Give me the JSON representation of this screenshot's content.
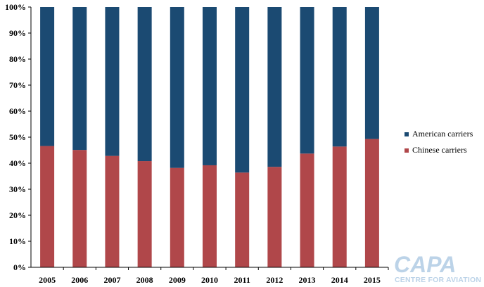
{
  "chart_data": {
    "type": "bar",
    "stacked": true,
    "percent_stacked": true,
    "categories": [
      "2005",
      "2006",
      "2007",
      "2008",
      "2009",
      "2010",
      "2011",
      "2012",
      "2013",
      "2014",
      "2015"
    ],
    "series": [
      {
        "name": "Chinese carriers",
        "color": "#b0474a",
        "values": [
          46.6,
          45.1,
          42.8,
          40.8,
          38.2,
          39.2,
          36.4,
          38.6,
          43.7,
          46.4,
          49.3
        ]
      },
      {
        "name": "American carriers",
        "color": "#1b4a72",
        "values": [
          53.4,
          54.9,
          57.2,
          59.2,
          61.8,
          60.8,
          63.6,
          61.4,
          56.3,
          53.6,
          50.7
        ]
      }
    ],
    "yticks": [
      "0%",
      "10%",
      "20%",
      "30%",
      "40%",
      "50%",
      "60%",
      "70%",
      "80%",
      "90%",
      "100%"
    ],
    "ylim": [
      0,
      100
    ],
    "grid": false,
    "legend_position": "right",
    "legend_order": [
      "American carriers",
      "Chinese carriers"
    ]
  },
  "watermark": {
    "logo_text": "CAPA",
    "tagline": "CENTRE FOR AVIATION",
    "color": "#bcd3e8"
  }
}
